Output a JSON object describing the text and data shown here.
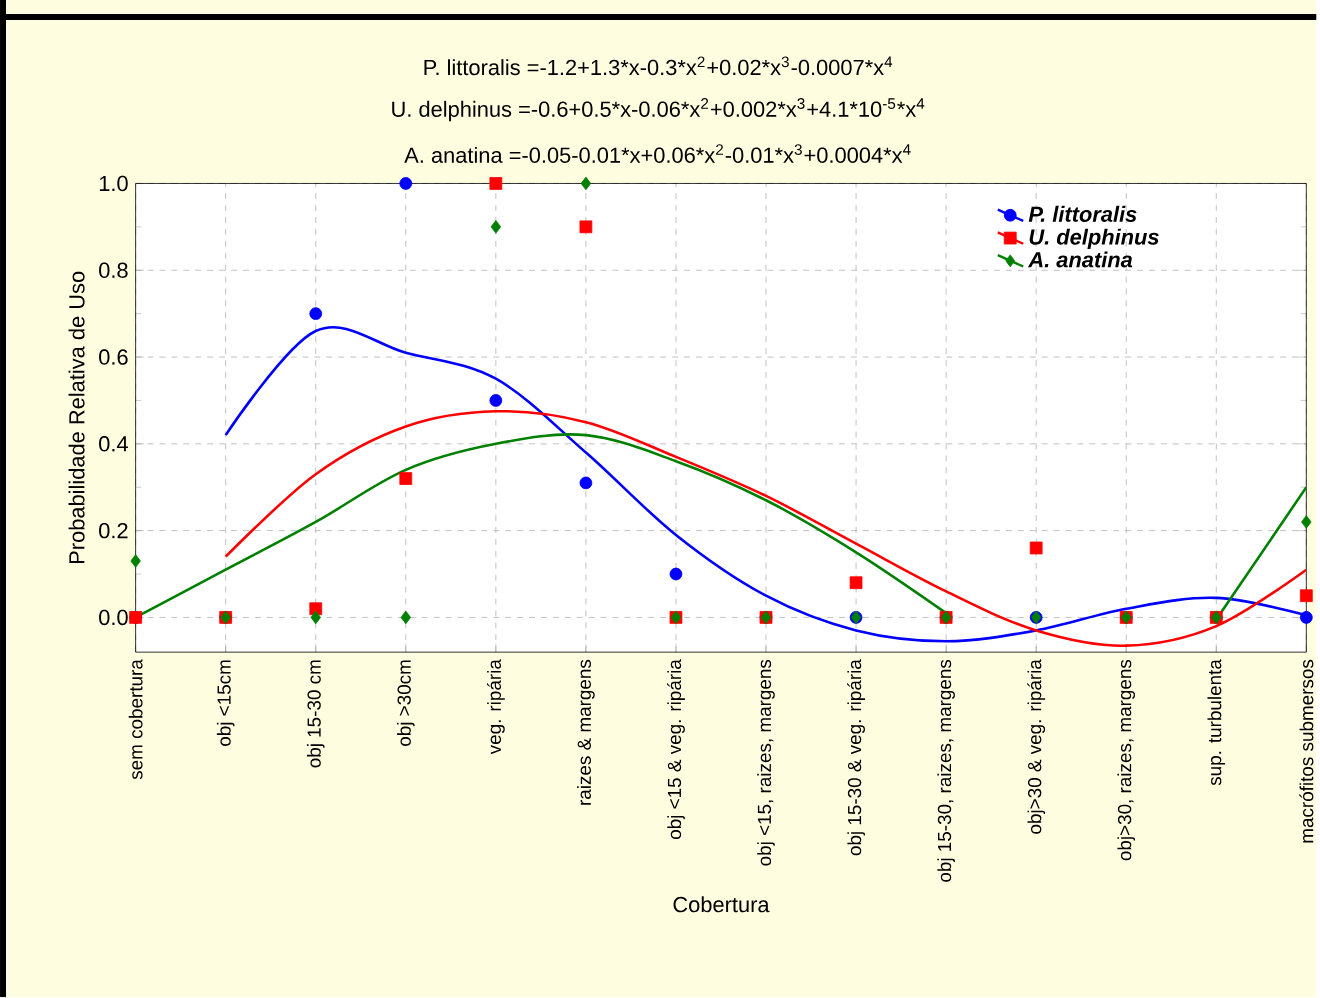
{
  "chart_data": {
    "type": "scatter",
    "annotations": [
      "P. littoralis =-1.2+1.3*x-0.3*x$^{2}$+0.02*x$^{3}$-0.0007*x$^{4}$",
      "U. delphinus =-0.6+0.5*x-0.06*x$^{2}$+0.002*x$^{3}$+4.1*10$^{-5}$*x$^{4}$",
      "A. anatina =-0.05-0.01*x+0.06*x$^{2}$-0.01*x$^{3}$+0.0004*x$^{4}$"
    ],
    "xlabel": "Cobertura",
    "ylabel": "Probabilidade Relativa de Uso",
    "categories": [
      "sem cobertura",
      "obj <15cm",
      "obj 15-30 cm",
      "obj >30cm",
      "veg. ripária",
      "raizes & margens",
      "obj <15 & veg. ripária",
      "obj <15, raizes, margens",
      "obj 15-30 & veg. ripária",
      "obj 15-30, raizes, margens",
      "obj>30 & veg. ripária",
      "obj>30, raizes, margens",
      "sup. turbulenta",
      "macrófitos submersos"
    ],
    "ylim": [
      -0.08,
      1.0
    ],
    "yticks": [
      {
        "value": 0,
        "label": "0.0"
      },
      0.2,
      0.4,
      0.6,
      0.8,
      {
        "value": 1,
        "label": "1.0"
      }
    ],
    "grid": true,
    "legend": "top right",
    "series": [
      {
        "name": "P. littoralis",
        "marker": "circle",
        "color": "#0000ff",
        "values": [
          0,
          0,
          0.7,
          1.0,
          0.5,
          0.31,
          0.1,
          0,
          0,
          0,
          0,
          0,
          0,
          0
        ]
      },
      {
        "name": "U. delphinus",
        "marker": "square",
        "color": "#ff0000",
        "values": [
          0,
          0,
          0.02,
          0.32,
          1.0,
          0.9,
          0,
          0,
          0.08,
          0,
          0.16,
          0,
          0,
          0.05
        ]
      },
      {
        "name": "A. anatina",
        "marker": "diamond",
        "color": "#008000",
        "values": [
          0.13,
          0,
          0,
          0,
          0.9,
          1.0,
          0,
          0,
          0,
          0,
          0,
          0,
          0,
          0.22
        ]
      },
      {
        "type": "line",
        "color": "#0000ff",
        "values": [
          null,
          0.42,
          0.66,
          0.61,
          0.55,
          0.38,
          0.19,
          0.05,
          -0.03,
          -0.055,
          -0.03,
          0.02,
          0.045,
          0.005
        ]
      },
      {
        "type": "line",
        "color": "#ff0000",
        "values": [
          null,
          0.14,
          0.33,
          0.44,
          0.475,
          0.45,
          0.37,
          0.28,
          0.17,
          0.06,
          -0.03,
          -0.065,
          -0.02,
          0.11
        ]
      },
      {
        "type": "line",
        "color": "#008000",
        "values": [
          0,
          0.11,
          0.22,
          0.34,
          0.4,
          0.42,
          0.36,
          0.27,
          0.15,
          0.01,
          null,
          null,
          -0.005,
          0.3
        ]
      }
    ]
  }
}
